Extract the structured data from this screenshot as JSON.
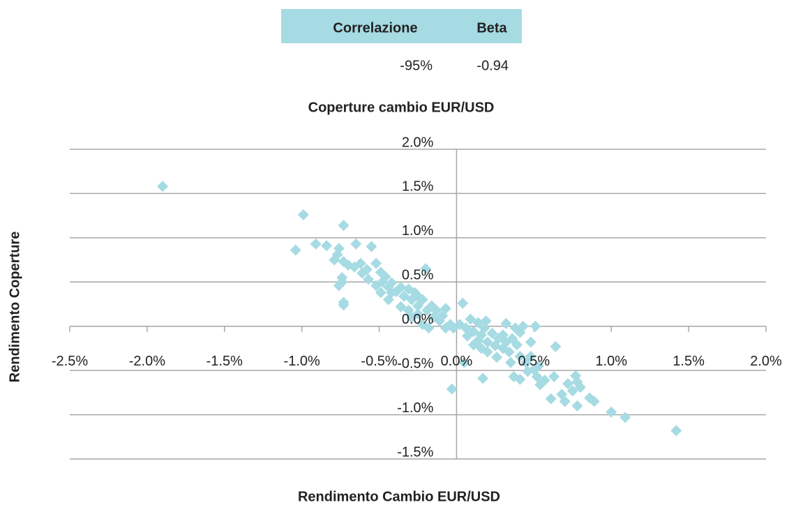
{
  "table": {
    "headers": [
      "Correlazione",
      "Beta"
    ],
    "rows": [
      [
        "-95%",
        "-0.94"
      ]
    ]
  },
  "chart_data": {
    "type": "scatter",
    "title": "Coperture cambio EUR/USD",
    "x_label": "Rendimento Cambio EUR/USD",
    "y_label": "Rendimento Coperture",
    "color": "#a6dbe3",
    "grid": true,
    "xlim": [
      -2.5,
      2.0
    ],
    "ylim": [
      -1.5,
      2.0
    ],
    "xticks": [
      {
        "value": -2.5,
        "label": "-2.5%"
      },
      {
        "value": -2.0,
        "label": "-2.0%"
      },
      {
        "value": -1.5,
        "label": "-1.5%"
      },
      {
        "value": -1.0,
        "label": "-1.0%"
      },
      {
        "value": -0.5,
        "label": "-0.5%"
      },
      {
        "value": 0.0,
        "label": "0.0%"
      },
      {
        "value": 0.5,
        "label": "0.5%"
      },
      {
        "value": 1.0,
        "label": "1.0%"
      },
      {
        "value": 1.5,
        "label": "1.5%"
      },
      {
        "value": 2.0,
        "label": "2.0%"
      }
    ],
    "yticks": [
      {
        "value": -1.5,
        "label": "-1.5%"
      },
      {
        "value": -1.0,
        "label": "-1.0%"
      },
      {
        "value": -0.5,
        "label": "-0.5%"
      },
      {
        "value": 0.0,
        "label": "0.0%"
      },
      {
        "value": 0.5,
        "label": "0.5%"
      },
      {
        "value": 1.0,
        "label": "1.0%"
      },
      {
        "value": 1.5,
        "label": "1.5%"
      },
      {
        "value": 2.0,
        "label": "2.0%"
      }
    ],
    "x": [
      -1.9,
      -0.99,
      -1.04,
      -0.73,
      -0.91,
      -0.84,
      -0.65,
      -0.55,
      -0.76,
      -0.79,
      -0.77,
      -0.73,
      -0.7,
      -0.66,
      -0.62,
      -0.52,
      -0.58,
      -0.74,
      -0.76,
      -0.74,
      -0.61,
      -0.57,
      -0.49,
      -0.73,
      -0.73,
      -0.46,
      -0.48,
      -0.44,
      -0.42,
      -0.39,
      -0.44,
      -0.42,
      -0.36,
      -0.34,
      -0.31,
      -0.29,
      -0.27,
      -0.25,
      -0.2,
      -0.25,
      -0.22,
      -0.19,
      -0.16,
      -0.15,
      -0.13,
      -0.11,
      -0.09,
      -0.07,
      -0.04,
      -0.02,
      0.04,
      0.02,
      0.06,
      0.09,
      0.11,
      0.14,
      0.16,
      0.18,
      0.2,
      0.23,
      0.25,
      0.27,
      0.3,
      0.32,
      0.19,
      0.34,
      0.32,
      0.43,
      0.51,
      0.36,
      0.39,
      0.41,
      0.45,
      0.48,
      0.5,
      0.52,
      0.54,
      0.57,
      0.53,
      0.64,
      0.63,
      0.61,
      0.68,
      0.7,
      0.72,
      0.75,
      0.77,
      0.78,
      0.8,
      0.78,
      0.86,
      0.89,
      1.0,
      1.09,
      1.42,
      -0.03,
      0.17,
      0.05,
      0.37,
      0.41,
      0.46,
      0.35,
      0.26,
      0.2,
      0.16,
      0.11,
      0.14,
      0.07,
      0.48,
      0.41,
      0.38,
      0.3,
      -0.07,
      -0.18,
      -0.22,
      -0.29,
      -0.36,
      -0.49,
      -0.52,
      -0.25,
      -0.31
    ],
    "values": [
      1.58,
      1.26,
      0.86,
      1.14,
      0.93,
      0.91,
      0.93,
      0.9,
      0.88,
      0.75,
      0.81,
      0.73,
      0.69,
      0.67,
      0.71,
      0.71,
      0.64,
      0.55,
      0.46,
      0.5,
      0.6,
      0.53,
      0.61,
      0.27,
      0.24,
      0.56,
      0.5,
      0.44,
      0.49,
      0.39,
      0.3,
      0.38,
      0.44,
      0.34,
      0.42,
      0.3,
      0.38,
      0.34,
      0.65,
      0.23,
      0.3,
      0.18,
      0.23,
      0.1,
      0.18,
      0.06,
      0.12,
      0.2,
      0.02,
      -0.02,
      0.26,
      0.02,
      -0.02,
      0.08,
      -0.06,
      0.04,
      -0.1,
      -0.02,
      -0.18,
      -0.08,
      -0.22,
      -0.14,
      -0.25,
      -0.18,
      0.06,
      -0.29,
      0.03,
      0.0,
      0.0,
      -0.14,
      -0.21,
      -0.34,
      -0.41,
      -0.34,
      -0.49,
      -0.57,
      -0.66,
      -0.61,
      -0.45,
      -0.23,
      -0.57,
      -0.82,
      -0.77,
      -0.85,
      -0.65,
      -0.73,
      -0.56,
      -0.63,
      -0.69,
      -0.9,
      -0.81,
      -0.85,
      -0.97,
      -1.03,
      -1.18,
      -0.71,
      -0.59,
      -0.41,
      -0.57,
      -0.6,
      -0.51,
      -0.41,
      -0.35,
      -0.29,
      -0.25,
      -0.21,
      -0.16,
      -0.11,
      -0.18,
      -0.07,
      -0.02,
      -0.1,
      -0.02,
      -0.02,
      0.02,
      0.1,
      0.22,
      0.38,
      0.46,
      0.14,
      0.18
    ]
  }
}
